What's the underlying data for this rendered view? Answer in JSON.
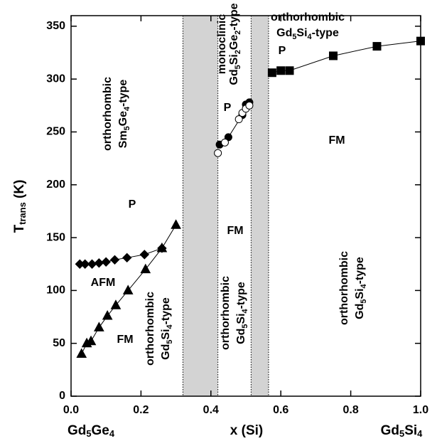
{
  "chart_data": {
    "type": "scatter",
    "xlabel": "x (Si)",
    "xlabel_left": "Gd5Ge4",
    "xlabel_right": "Gd5Si4",
    "ylabel": "Ttrans (K)",
    "xlim": [
      0,
      1.0
    ],
    "ylim": [
      0,
      360
    ],
    "xticks": [
      {
        "value": 0,
        "label": "0.0"
      },
      0.2,
      0.4,
      0.6,
      0.8,
      {
        "value": 1.0,
        "label": "1.0"
      }
    ],
    "yticks": [
      0,
      50,
      100,
      150,
      200,
      250,
      300,
      350
    ],
    "shaded_regions": [
      [
        0.32,
        0.42
      ],
      [
        0.515,
        0.565
      ]
    ],
    "series": [
      {
        "marker": "diamond",
        "filled": true,
        "line": true,
        "color": "#000",
        "x": [
          0.025,
          0.04,
          0.06,
          0.08,
          0.1,
          0.125,
          0.16,
          0.21,
          0.26
        ],
        "values": [
          125,
          125,
          125,
          126,
          127,
          129,
          131,
          134,
          140
        ]
      },
      {
        "marker": "triangle",
        "filled": true,
        "line": true,
        "color": "#000",
        "x": [
          0.03,
          0.045,
          0.057,
          0.08,
          0.104,
          0.128,
          0.163,
          0.213,
          0.26,
          0.3
        ],
        "values": [
          40,
          50,
          52,
          65,
          76,
          86,
          100,
          120,
          140,
          162
        ]
      },
      {
        "marker": "circle",
        "filled": true,
        "line": true,
        "color": "#000",
        "x": [
          0.425,
          0.45,
          0.49,
          0.5,
          0.51
        ],
        "values": [
          238,
          245,
          266,
          276,
          278
        ]
      },
      {
        "marker": "circle",
        "filled": false,
        "line": false,
        "color": "#000",
        "x": [
          0.42,
          0.44,
          0.48,
          0.49,
          0.5,
          0.51
        ],
        "values": [
          230,
          240,
          262,
          268,
          272,
          275
        ]
      },
      {
        "marker": "square",
        "filled": true,
        "line": true,
        "color": "#000",
        "x": [
          0.575,
          0.6,
          0.625,
          0.75,
          0.875,
          1.0
        ],
        "values": [
          306,
          308,
          308,
          322,
          331,
          336
        ]
      }
    ],
    "annotations": [
      "orthorhombic",
      "Sm5Ge4-type",
      "P",
      "AFM",
      "FM",
      "orthorhombic",
      "Gd5Si4-type",
      "monoclinic",
      "Gd5Si2Ge2-type",
      "P",
      "FM",
      "orthorhombic",
      "Gd5Si4-type",
      "orthorhombic",
      "Gd5Si4-type",
      "P",
      "FM",
      "orthorhombic",
      "Gd5Si4-type"
    ]
  }
}
